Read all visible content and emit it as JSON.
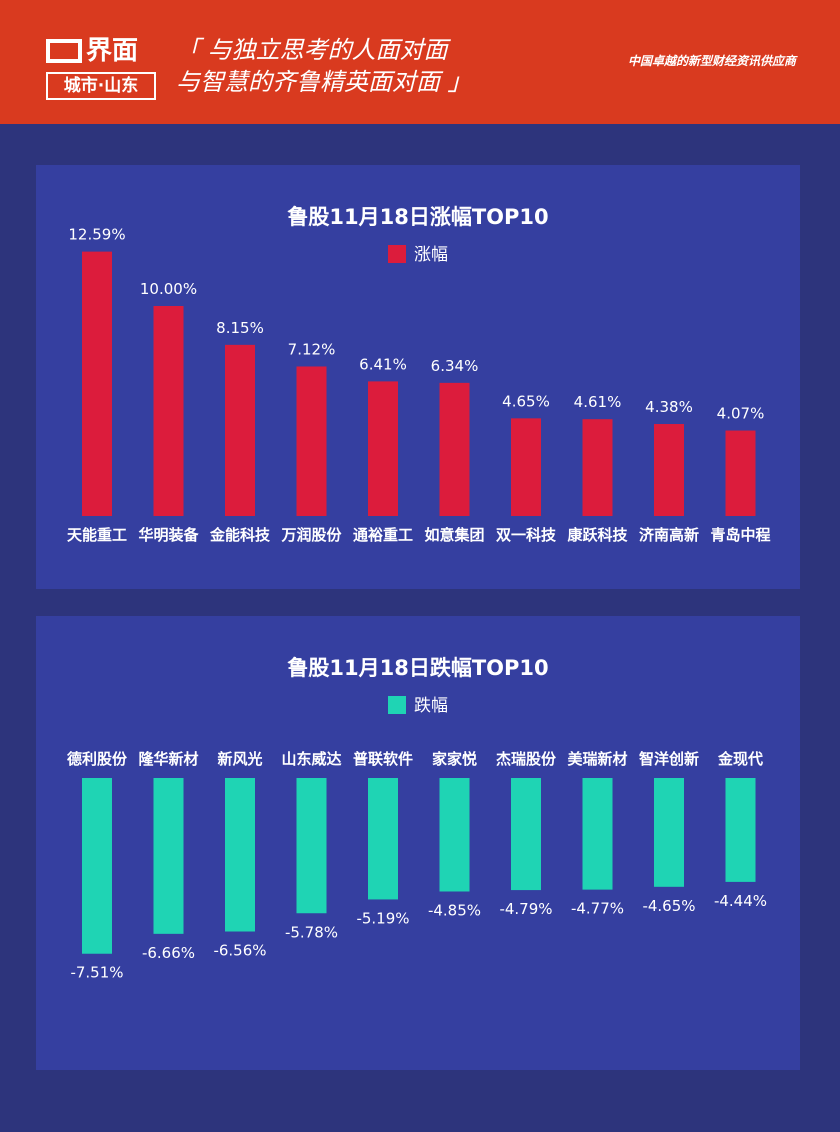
{
  "header": {
    "logo_brand": "界面",
    "logo_city": "城市·山东",
    "slogan_line1": "「 与独立思考的人面对面",
    "slogan_line2": "与智慧的齐鲁精英面对面 」",
    "tagline": "中国卓越的新型财经资讯供应商"
  },
  "colors": {
    "header_bg": "#d93a1f",
    "page_bg": "#2d347c",
    "panel_bg": "#353fa0",
    "gain": "#dc1c3c",
    "loss": "#1fd4b4"
  },
  "chart_data": [
    {
      "type": "bar",
      "title": "鲁股11月18日涨幅TOP10",
      "categories": [
        "天能重工",
        "华明装备",
        "金能科技",
        "万润股份",
        "通裕重工",
        "如意集团",
        "双一科技",
        "康跃科技",
        "济南高新",
        "青岛中程"
      ],
      "series": [
        {
          "name": "涨幅",
          "values": [
            12.59,
            10.0,
            8.15,
            7.12,
            6.41,
            6.34,
            4.65,
            4.61,
            4.38,
            4.07
          ]
        }
      ],
      "labels": [
        "12.59%",
        "10.00%",
        "8.15%",
        "7.12%",
        "6.41%",
        "6.34%",
        "4.65%",
        "4.61%",
        "4.38%",
        "4.07%"
      ],
      "legend": "top-center",
      "grid": false
    },
    {
      "type": "bar",
      "title": "鲁股11月18日跌幅TOP10",
      "categories": [
        "德利股份",
        "隆华新材",
        "新风光",
        "山东威达",
        "普联软件",
        "家家悦",
        "杰瑞股份",
        "美瑞新材",
        "智洋创新",
        "金现代"
      ],
      "series": [
        {
          "name": "跌幅",
          "values": [
            -7.51,
            -6.66,
            -6.56,
            -5.78,
            -5.19,
            -4.85,
            -4.79,
            -4.77,
            -4.65,
            -4.44
          ]
        }
      ],
      "labels": [
        "-7.51%",
        "-6.66%",
        "-6.56%",
        "-5.78%",
        "-5.19%",
        "-4.85%",
        "-4.79%",
        "-4.77%",
        "-4.65%",
        "-4.44%"
      ],
      "legend": "top-center",
      "grid": false
    }
  ]
}
